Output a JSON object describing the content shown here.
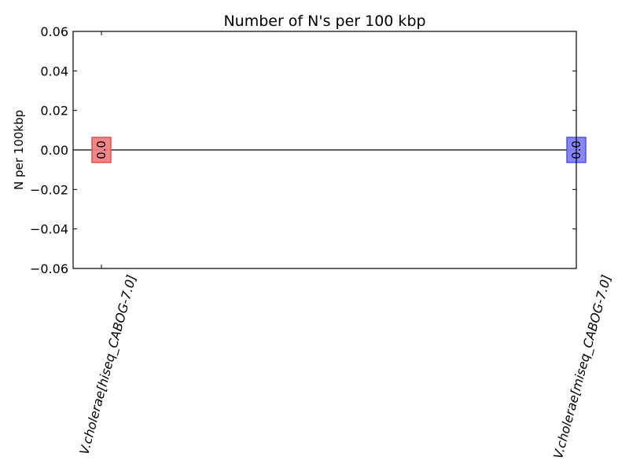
{
  "chart_data": {
    "type": "bar",
    "title": "Number of N's per 100 kbp",
    "xlabel": "",
    "ylabel": "N per 100kbp",
    "categories": [
      "V.cholerae[hiseq_CABOG-7.0]",
      "V.cholerae[miseq_CABOG-7.0]"
    ],
    "values": [
      0.0,
      0.0
    ],
    "value_labels": [
      "0.0",
      "0.0"
    ],
    "bar_colors": [
      "#f08080",
      "#8080f8"
    ],
    "bar_edge_colors": [
      "#e05050",
      "#5050f0"
    ],
    "ylim": [
      -0.06,
      0.06
    ],
    "yticks": [
      0.06,
      0.04,
      0.02,
      0.0,
      -0.02,
      -0.04,
      -0.06
    ],
    "ytick_labels": [
      "0.06",
      "0.04",
      "0.02",
      "0.00",
      "−0.02",
      "−0.04",
      "−0.06"
    ],
    "grid": false,
    "legend": false,
    "zero_line": true
  }
}
